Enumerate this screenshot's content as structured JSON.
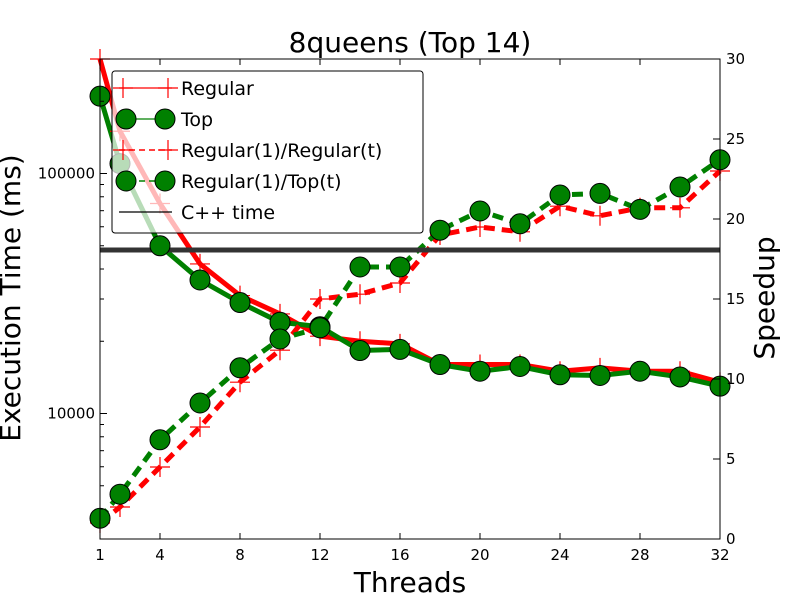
{
  "chart_data": {
    "type": "line",
    "title": "8queens (Top 14)",
    "xlabel": "Threads",
    "ylabel_left": "Execution Time (ms)",
    "ylabel_right": "Speedup",
    "x_ticks": [
      "1",
      "4",
      "8",
      "12",
      "16",
      "20",
      "24",
      "28",
      "32"
    ],
    "y_left_ticks": [
      "10000",
      "100000"
    ],
    "y_right_ticks": [
      "0",
      "5",
      "10",
      "15",
      "20",
      "25",
      "30"
    ],
    "xlim": [
      1,
      32
    ],
    "ylim_left": [
      3000,
      300000
    ],
    "ylim_left_scale": "log",
    "ylim_right": [
      0,
      30
    ],
    "legend_position": "top-left",
    "colors": {
      "regular": "#ff0000",
      "top": "#008000",
      "cpp": "#333333"
    },
    "series": [
      {
        "name": "Regular",
        "axis": "left",
        "style": "solid-plus",
        "x": [
          1,
          2,
          4,
          6,
          8,
          10,
          12,
          14,
          16,
          18,
          20,
          22,
          24,
          26,
          28,
          30,
          32
        ],
        "y": [
          300000,
          150000,
          75000,
          42000,
          31000,
          26000,
          21000,
          20000,
          19500,
          16000,
          16000,
          16000,
          15000,
          15500,
          15000,
          15000,
          13500
        ]
      },
      {
        "name": "Top",
        "axis": "left",
        "style": "solid-circle",
        "x": [
          1,
          2,
          4,
          6,
          8,
          10,
          12,
          14,
          16,
          18,
          20,
          22,
          24,
          26,
          28,
          30,
          32
        ],
        "y": [
          210000,
          110000,
          50000,
          36000,
          29000,
          24000,
          23000,
          18300,
          18500,
          16000,
          15000,
          15700,
          14500,
          14400,
          15000,
          14200,
          13000
        ]
      },
      {
        "name": "Regular(1)/Regular(t)",
        "axis": "right",
        "style": "dashed-plus",
        "x": [
          1,
          2,
          4,
          6,
          8,
          10,
          12,
          14,
          16,
          18,
          20,
          22,
          24,
          26,
          28,
          30,
          32
        ],
        "y": [
          1,
          2,
          4.5,
          7,
          9.8,
          11.8,
          15,
          15.3,
          16,
          19,
          19.5,
          19.2,
          20.8,
          20.2,
          20.7,
          20.7,
          23
        ]
      },
      {
        "name": "Regular(1)/Top(t)",
        "axis": "right",
        "style": "dashed-circle",
        "x": [
          1,
          2,
          4,
          6,
          8,
          10,
          12,
          14,
          16,
          18,
          20,
          22,
          24,
          26,
          28,
          30,
          32
        ],
        "y": [
          1.3,
          2.8,
          6.2,
          8.5,
          10.7,
          12.5,
          13.2,
          17,
          17,
          19.3,
          20.5,
          19.7,
          21.5,
          21.6,
          20.6,
          22,
          23.7
        ]
      },
      {
        "name": "C++ time",
        "axis": "left",
        "style": "horizontal-line",
        "y": 48000
      }
    ]
  }
}
